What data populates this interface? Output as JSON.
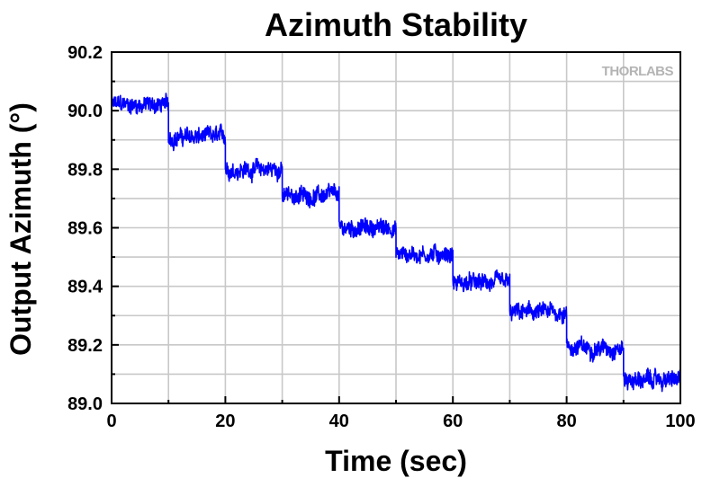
{
  "chart_data": {
    "type": "line",
    "title": "Azimuth Stability",
    "xlabel": "Time (sec)",
    "ylabel": "Output Azimuth (°)",
    "xlim": [
      0,
      100
    ],
    "ylim": [
      89.0,
      90.2
    ],
    "xticks": [
      "0",
      "20",
      "40",
      "60",
      "80",
      "100"
    ],
    "yticks": [
      "89.0",
      "89.2",
      "89.4",
      "89.6",
      "89.8",
      "90.0",
      "90.2"
    ],
    "grid": true,
    "series": [
      {
        "color": "#0000ff",
        "segments": [
          {
            "x_start": 0,
            "x_end": 10,
            "y_mean": 90.02,
            "y_noise": 0.04
          },
          {
            "x_start": 10,
            "x_end": 20,
            "y_mean": 89.91,
            "y_noise": 0.04
          },
          {
            "x_start": 20,
            "x_end": 30,
            "y_mean": 89.8,
            "y_noise": 0.04
          },
          {
            "x_start": 30,
            "x_end": 40,
            "y_mean": 89.71,
            "y_noise": 0.04
          },
          {
            "x_start": 40,
            "x_end": 50,
            "y_mean": 89.6,
            "y_noise": 0.04
          },
          {
            "x_start": 50,
            "x_end": 60,
            "y_mean": 89.51,
            "y_noise": 0.04
          },
          {
            "x_start": 60,
            "x_end": 70,
            "y_mean": 89.41,
            "y_noise": 0.04
          },
          {
            "x_start": 70,
            "x_end": 80,
            "y_mean": 89.31,
            "y_noise": 0.04
          },
          {
            "x_start": 80,
            "x_end": 90,
            "y_mean": 89.19,
            "y_noise": 0.04
          },
          {
            "x_start": 90,
            "x_end": 100,
            "y_mean": 89.08,
            "y_noise": 0.04
          }
        ]
      }
    ]
  },
  "watermark": {
    "text": "THORLABS"
  }
}
